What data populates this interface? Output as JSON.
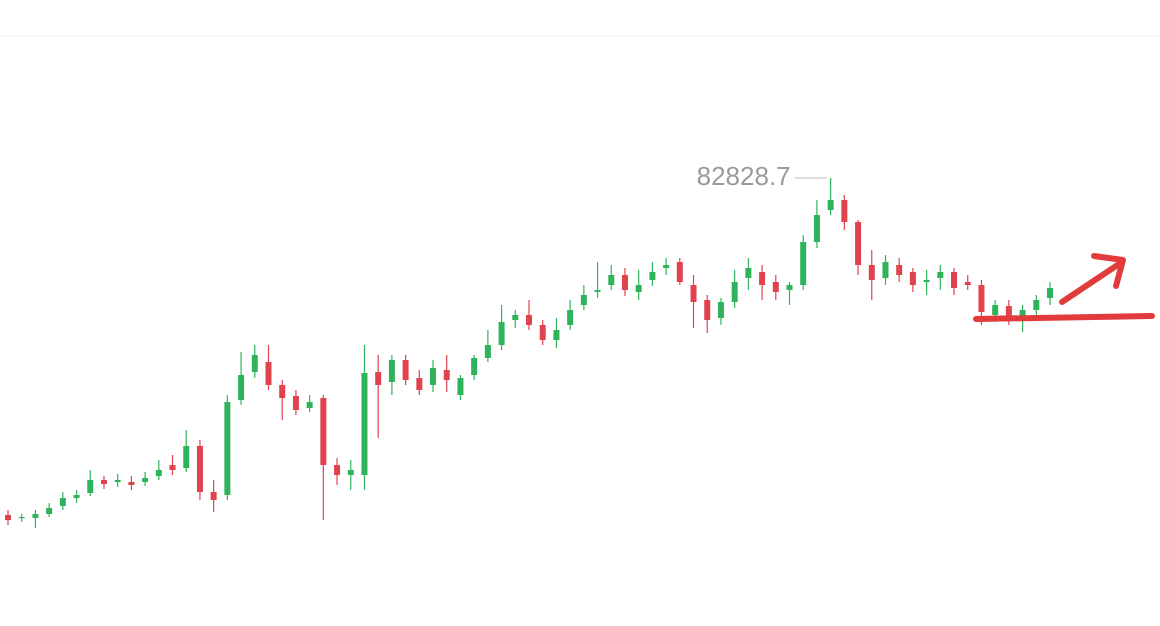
{
  "chart_data": {
    "type": "candlestick",
    "up_color": "#2fb35a",
    "down_color": "#e0424e",
    "ylim": [
      38030,
      100630
    ],
    "open": [
      49130,
      48830,
      48830,
      49230,
      50030,
      50830,
      51330,
      52630,
      52430,
      52430,
      52430,
      53030,
      54130,
      53830,
      56030,
      51430,
      51130,
      60630,
      63430,
      64430,
      62130,
      61030,
      59830,
      60830,
      54130,
      53130,
      53130,
      63430,
      62430,
      64630,
      62830,
      62130,
      63630,
      61130,
      63130,
      64830,
      66130,
      68630,
      69130,
      68130,
      66630,
      68130,
      70130,
      71430,
      72130,
      73130,
      71430,
      72630,
      73830,
      74430,
      72130,
      70630,
      68830,
      70430,
      72830,
      73430,
      72430,
      71630,
      72130,
      76430,
      79630,
      80630,
      78430,
      74130,
      72830,
      74130,
      73430,
      72430,
      72830,
      73430,
      72430,
      72130,
      69130,
      70030,
      68830,
      69630,
      70830
    ],
    "high": [
      49630,
      49230,
      49630,
      50330,
      51430,
      51630,
      53630,
      53030,
      53230,
      53030,
      53430,
      54630,
      55130,
      57630,
      56630,
      52630,
      61130,
      65430,
      66130,
      66130,
      62630,
      61630,
      61130,
      61130,
      54830,
      54630,
      66130,
      65130,
      65130,
      65130,
      63630,
      64630,
      65130,
      63130,
      65130,
      67630,
      70130,
      69630,
      70630,
      68630,
      68830,
      70630,
      72130,
      74430,
      74130,
      73830,
      73630,
      74430,
      74830,
      74830,
      73130,
      71130,
      70830,
      73630,
      74830,
      74130,
      73130,
      72430,
      77130,
      80630,
      82828.7,
      81130,
      78630,
      75630,
      75130,
      74830,
      73830,
      73630,
      74130,
      73830,
      73130,
      72630,
      70630,
      70630,
      70130,
      71130,
      72430
    ],
    "low": [
      48130,
      48430,
      47830,
      48930,
      49630,
      50330,
      51030,
      51730,
      51930,
      51630,
      52030,
      52630,
      53130,
      53430,
      50630,
      49430,
      50630,
      60130,
      62830,
      61630,
      58630,
      59130,
      59430,
      48630,
      52130,
      51630,
      51630,
      56830,
      61130,
      62130,
      61130,
      61430,
      61430,
      60630,
      62630,
      64430,
      65630,
      67830,
      67630,
      66130,
      65830,
      67630,
      69630,
      70830,
      71630,
      71030,
      70630,
      72030,
      73130,
      72130,
      67830,
      67330,
      68130,
      69830,
      71630,
      70630,
      70630,
      70130,
      71630,
      75830,
      79130,
      77630,
      73130,
      70630,
      72130,
      72430,
      71430,
      71130,
      71630,
      71130,
      71630,
      68130,
      68430,
      68130,
      67430,
      68830,
      70130
    ],
    "close": [
      48630,
      48930,
      49230,
      49830,
      50830,
      51130,
      52630,
      52230,
      52630,
      52130,
      52830,
      53630,
      53630,
      56030,
      51430,
      50630,
      60430,
      63130,
      65130,
      62130,
      60830,
      59630,
      60430,
      54130,
      53130,
      53630,
      63330,
      62130,
      64630,
      62630,
      61630,
      63830,
      62630,
      62830,
      64830,
      66130,
      68430,
      69130,
      68130,
      66630,
      67630,
      69630,
      71130,
      71630,
      73130,
      71630,
      72130,
      73430,
      74130,
      72430,
      70430,
      68630,
      70430,
      72430,
      73830,
      72130,
      71430,
      72130,
      76430,
      79130,
      80630,
      78430,
      74130,
      72630,
      74430,
      73130,
      72130,
      72630,
      73430,
      71830,
      72130,
      69430,
      70130,
      68830,
      69630,
      70630,
      71830
    ]
  }
}
